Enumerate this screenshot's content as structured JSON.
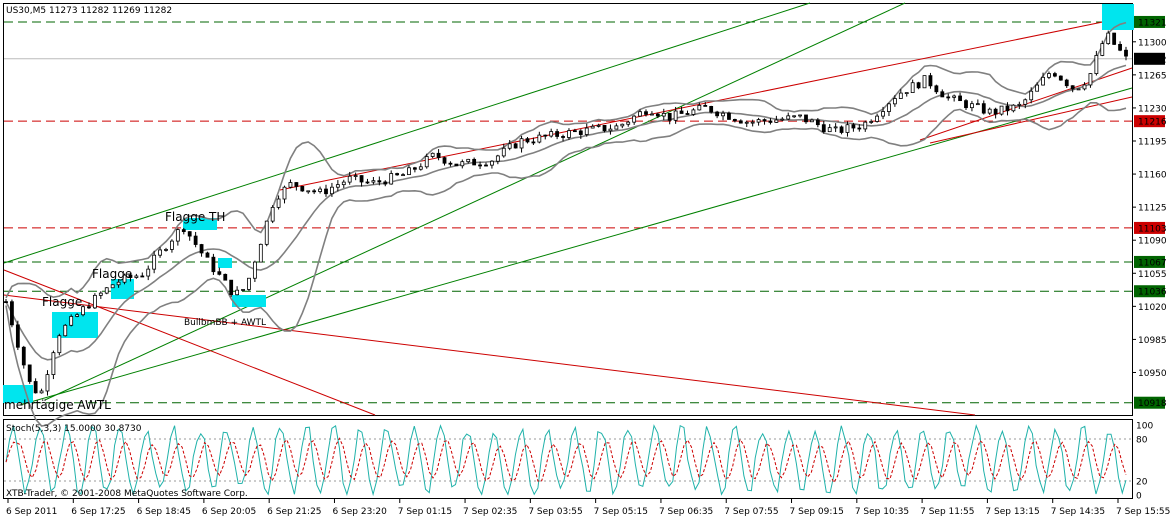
{
  "header": {
    "symbol_info": "US30,M5  11273 11282 11269 11282"
  },
  "chart_data": {
    "type": "candlestick",
    "symbol": "US30",
    "timeframe": "M5",
    "ohlc_header": [
      11273,
      11282,
      11269,
      11282
    ],
    "ylim": [
      10905,
      11340
    ],
    "price_ticks": [
      11300,
      11265,
      11230,
      11195,
      11160,
      11125,
      11090,
      11055,
      11020,
      10985,
      10950
    ],
    "time_labels": [
      "6 Sep 2011",
      "6 Sep 17:25",
      "6 Sep 18:45",
      "6 Sep 20:05",
      "6 Sep 21:25",
      "6 Sep 23:20",
      "7 Sep 01:15",
      "7 Sep 02:35",
      "7 Sep 03:55",
      "7 Sep 05:15",
      "7 Sep 06:35",
      "7 Sep 07:55",
      "7 Sep 09:15",
      "7 Sep 10:35",
      "7 Sep 11:55",
      "7 Sep 13:15",
      "7 Sep 14:35",
      "7 Sep 15:55"
    ],
    "candle_count": 190,
    "price_anchors": [
      [
        0,
        11025
      ],
      [
        8,
        10940
      ],
      [
        12,
        10925
      ],
      [
        18,
        10990
      ],
      [
        28,
        11020
      ],
      [
        38,
        11045
      ],
      [
        48,
        11055
      ],
      [
        56,
        11085
      ],
      [
        62,
        11105
      ],
      [
        70,
        11070
      ],
      [
        80,
        11032
      ],
      [
        84,
        11040
      ],
      [
        94,
        11135
      ],
      [
        100,
        11150
      ],
      [
        110,
        11140
      ],
      [
        120,
        11155
      ],
      [
        128,
        11150
      ],
      [
        140,
        11160
      ],
      [
        150,
        11180
      ],
      [
        158,
        11170
      ],
      [
        170,
        11175
      ],
      [
        180,
        11195
      ],
      [
        200,
        11205
      ],
      [
        214,
        11210
      ],
      [
        225,
        11230
      ],
      [
        232,
        11220
      ],
      [
        245,
        11230
      ],
      [
        260,
        11215
      ],
      [
        278,
        11220
      ],
      [
        290,
        11205
      ],
      [
        300,
        11212
      ],
      [
        312,
        11245
      ],
      [
        322,
        11260
      ],
      [
        330,
        11240
      ],
      [
        345,
        11225
      ],
      [
        355,
        11232
      ],
      [
        366,
        11270
      ],
      [
        374,
        11250
      ],
      [
        379,
        11262
      ],
      [
        385,
        11308
      ],
      [
        392,
        11282
      ]
    ],
    "horizontal_levels": [
      {
        "value": 11321,
        "color": "#006400",
        "label_bg": "#006400"
      },
      {
        "value": 11216,
        "color": "#cc0000",
        "label_bg": "#cc0000"
      },
      {
        "value": 11103,
        "color": "#cc0000",
        "label_bg": "#cc0000"
      },
      {
        "value": 11067,
        "color": "#006400",
        "label_bg": "#006400"
      },
      {
        "value": 11036,
        "color": "#006400",
        "label_bg": "#006400"
      },
      {
        "value": 10918,
        "color": "#006400",
        "label_bg": "#006400"
      }
    ],
    "current_price": {
      "value": 11282,
      "label_bg": "#000000"
    },
    "annotations": [
      {
        "text": "Flagge",
        "size": 12
      },
      {
        "text": "Flagge",
        "size": 12
      },
      {
        "text": "Flagge TH",
        "size": 12
      },
      {
        "text": "BullbmBB + AWTL",
        "size": 9
      },
      {
        "text": "mehrtägige AWTL",
        "size": 12
      }
    ],
    "highlight_color": "#00e5ee",
    "colors": {
      "candle": "#000000",
      "bollinger": "#808080",
      "trend_green": "#008000",
      "trend_red": "#cc0000"
    }
  },
  "stochastic": {
    "label": "Stoch(5,3,3) 15.0000 30.8730",
    "ylim": [
      0,
      100
    ],
    "ticks": [
      "100",
      "80",
      "20",
      "0"
    ],
    "main_color": "#20b2aa",
    "signal_color": "#cc0000",
    "cycles": 42
  },
  "footer": {
    "copyright": "XTB-Trader, © 2001-2008 MetaQuotes Software Corp."
  }
}
